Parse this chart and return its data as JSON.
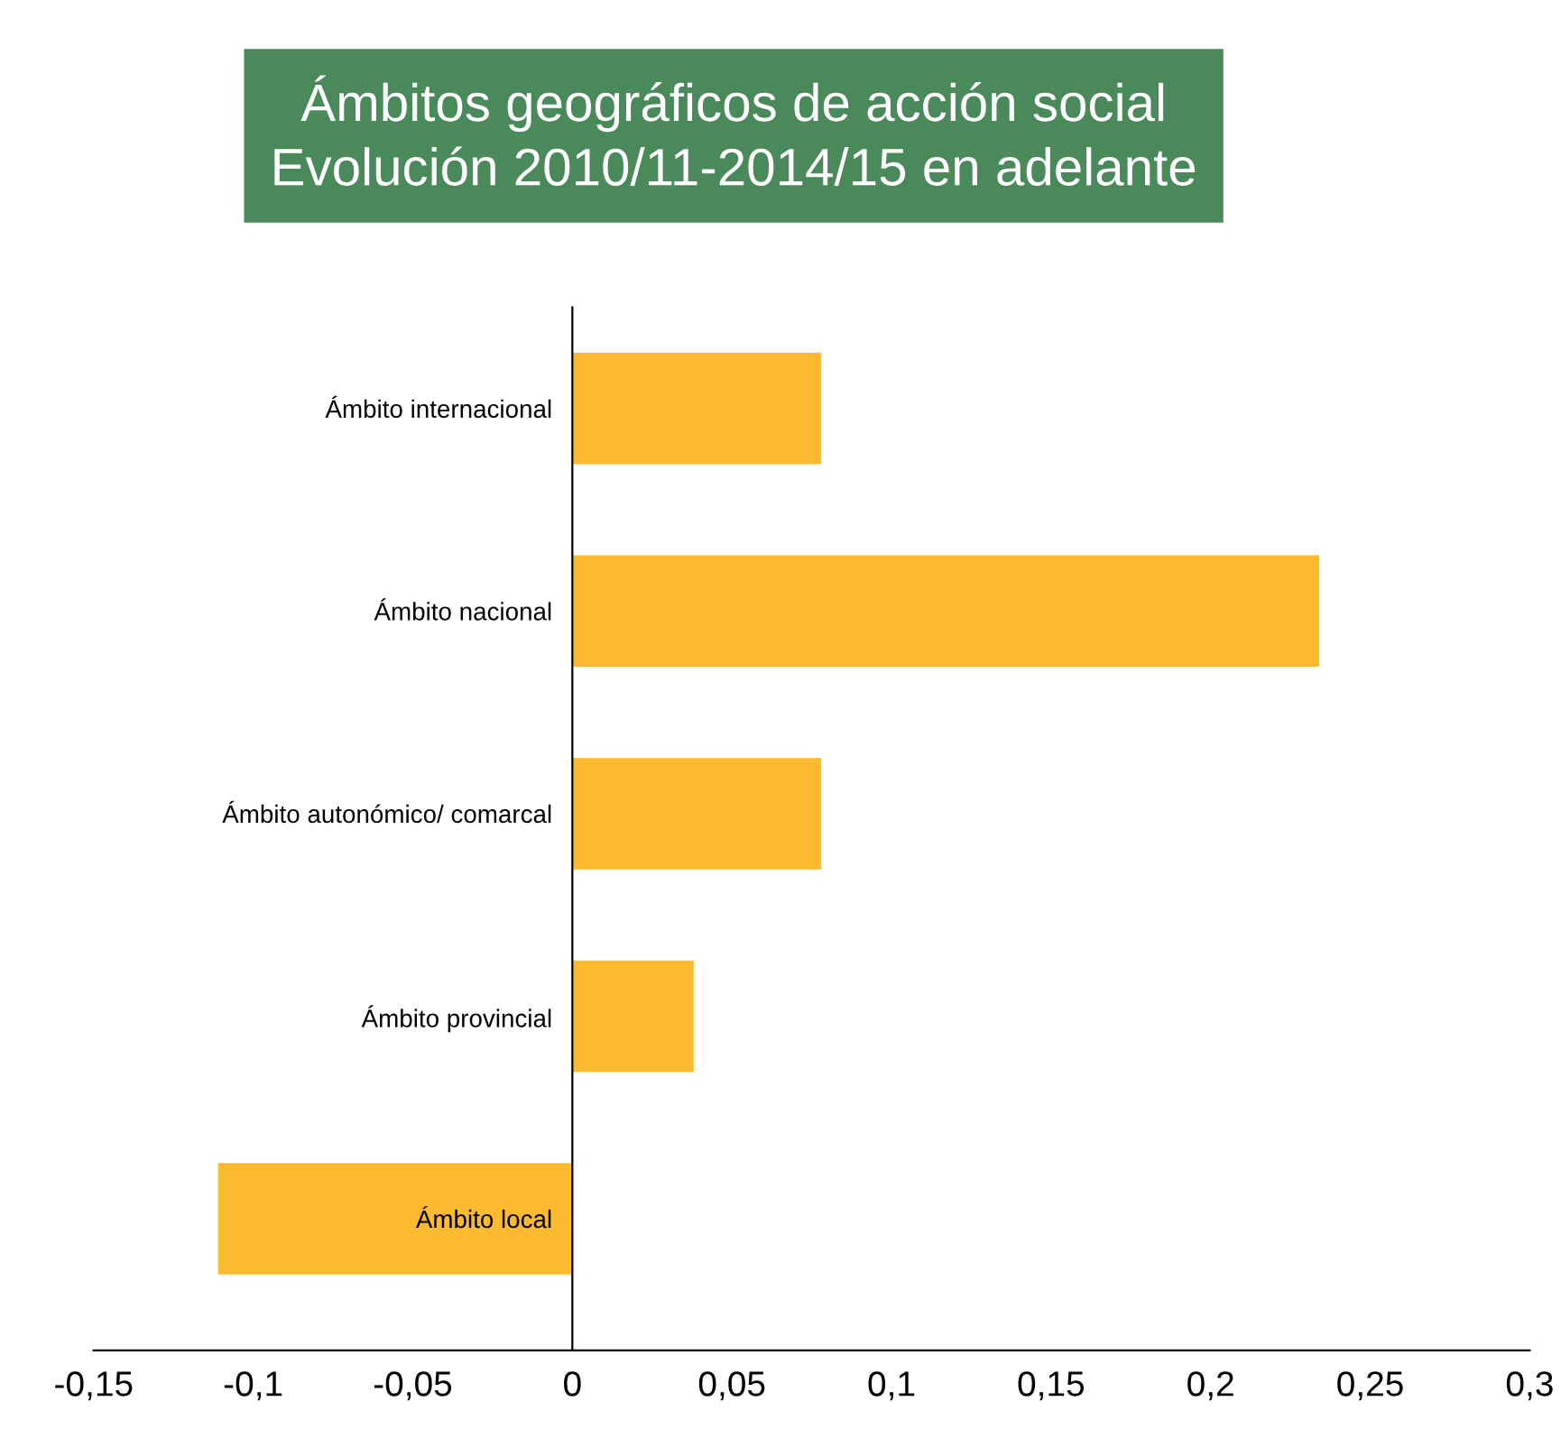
{
  "chart_data": {
    "type": "bar",
    "orientation": "horizontal",
    "title": "Ámbitos geográficos de acción social\nEvolución 2010/11-2014/15 en adelante",
    "categories": [
      "Ámbito internacional",
      "Ámbito nacional",
      "Ámbito autonómico/ comarcal",
      "Ámbito provincial",
      "Ámbito local"
    ],
    "values": [
      0.078,
      0.234,
      0.078,
      0.038,
      -0.111
    ],
    "color": "#fbba30",
    "xlim": [
      -0.15,
      0.3
    ],
    "xticks": [
      {
        "value": -0.15,
        "label": "-0,15"
      },
      {
        "value": -0.1,
        "label": "-0,1"
      },
      {
        "value": -0.05,
        "label": "-0,05"
      },
      {
        "value": 0,
        "label": "0"
      },
      {
        "value": 0.05,
        "label": "0,05"
      },
      {
        "value": 0.1,
        "label": "0,1"
      },
      {
        "value": 0.15,
        "label": "0,15"
      },
      {
        "value": 0.2,
        "label": "0,2"
      },
      {
        "value": 0.25,
        "label": "0,25"
      },
      {
        "value": 0.3,
        "label": "0,3"
      }
    ],
    "grid": false,
    "legend": false
  }
}
